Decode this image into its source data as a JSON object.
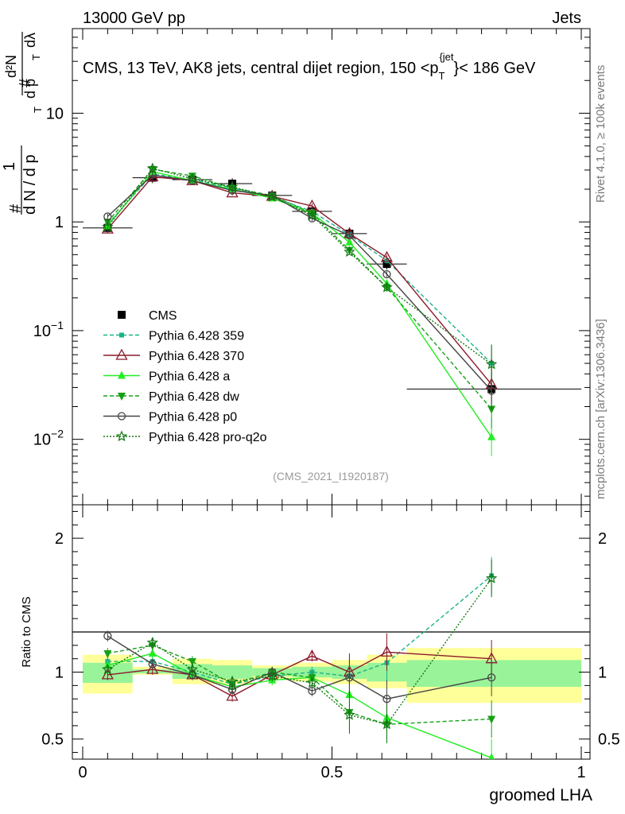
{
  "header": {
    "energy_label": "13000 GeV pp",
    "category_label": "Jets"
  },
  "side_labels": {
    "rivet": "Rivet 4.1.0, ≥ 100k events",
    "source": "mcplots.cern.ch [arXiv:1306.3436]"
  },
  "chart_data": [
    {
      "type": "line",
      "scale": "log",
      "title_parts": {
        "pre": "CMS, 13 TeV, AK8 jets, central dijet region, 150 <p",
        "sub": "T",
        "sup": "{jet",
        "post": "}< 186 GeV"
      },
      "ylabel_parts": {
        "hash": "#",
        "one": "1",
        "d": "d",
        "N": "N",
        "slash": " / ",
        "dp": "d p",
        "T": "T",
        "d2N": "d²N",
        "dpT": "d p",
        "dlam": "dλ"
      },
      "ylim": [
        0.0025,
        60
      ],
      "y_ticks": [
        {
          "value": 0.01,
          "base": "10",
          "exp": "−2"
        },
        {
          "value": 0.1,
          "base": "10",
          "exp": "−1"
        },
        {
          "value": 1,
          "base": "1",
          "exp": ""
        },
        {
          "value": 10,
          "base": "10",
          "exp": ""
        }
      ],
      "reference_label": "(CMS_2021_I1920187)",
      "x": [
        0.05,
        0.14,
        0.22,
        0.3,
        0.38,
        0.46,
        0.535,
        0.61,
        0.82
      ],
      "bin_edges": [
        0,
        0.1,
        0.18,
        0.26,
        0.34,
        0.42,
        0.5,
        0.57,
        0.65,
        1.0
      ],
      "series": [
        {
          "name": "CMS",
          "color": "#000000",
          "marker": "square",
          "dash": "",
          "values": [
            0.88,
            2.55,
            2.45,
            2.25,
            1.75,
            1.25,
            0.78,
            0.41,
            0.029
          ]
        },
        {
          "name": "Pythia 6.428 359",
          "color": "#1ab28a",
          "marker": "smallsquare",
          "dash": "5,3",
          "values": [
            0.95,
            2.75,
            2.45,
            2.05,
            1.7,
            1.25,
            0.76,
            0.44,
            0.05
          ]
        },
        {
          "name": "Pythia 6.428 370",
          "color": "#8b1a2b",
          "marker": "triangle-open",
          "dash": "",
          "values": [
            0.86,
            2.6,
            2.4,
            1.85,
            1.72,
            1.4,
            0.78,
            0.47,
            0.032
          ]
        },
        {
          "name": "Pythia 6.428 a",
          "color": "#22ee22",
          "marker": "triangle",
          "dash": "",
          "values": [
            0.92,
            2.9,
            2.4,
            2.0,
            1.65,
            1.2,
            0.65,
            0.27,
            0.0105
          ]
        },
        {
          "name": "Pythia 6.428 dw",
          "color": "#16a016",
          "marker": "triangle-down",
          "dash": "5,3",
          "values": [
            1.0,
            3.05,
            2.65,
            2.05,
            1.75,
            1.2,
            0.55,
            0.25,
            0.019
          ]
        },
        {
          "name": "Pythia 6.428 p0",
          "color": "#444444",
          "marker": "circle-open",
          "dash": "",
          "values": [
            1.12,
            2.7,
            2.4,
            1.95,
            1.75,
            1.08,
            0.75,
            0.33,
            0.028
          ]
        },
        {
          "name": "Pythia 6.428 pro-q2o",
          "color": "#117711",
          "marker": "star",
          "dash": "2,2",
          "values": [
            0.9,
            3.1,
            2.5,
            2.1,
            1.7,
            1.15,
            0.53,
            0.25,
            0.049
          ]
        }
      ]
    },
    {
      "type": "line",
      "ylabel": "Ratio to CMS",
      "xlabel": "groomed LHA",
      "ylim": [
        0.35,
        2.25
      ],
      "xlim": [
        -0.02,
        1.0
      ],
      "y_ticks": [
        {
          "value": 0.5,
          "label": "0.5"
        },
        {
          "value": 1,
          "label": "1"
        },
        {
          "value": 2,
          "label": "2"
        }
      ],
      "x_ticks": [
        {
          "value": 0,
          "label": "0"
        },
        {
          "value": 0.5,
          "label": "0.5"
        },
        {
          "value": 1,
          "label": "1"
        }
      ],
      "bands": {
        "bin_edges": [
          0,
          0.1,
          0.18,
          0.26,
          0.34,
          0.42,
          0.5,
          0.57,
          0.65,
          1.0
        ],
        "yellow": [
          [
            0.84,
            1.13
          ],
          [
            0.98,
            1.04
          ],
          [
            0.91,
            1.1
          ],
          [
            0.91,
            1.09
          ],
          [
            0.95,
            1.05
          ],
          [
            0.93,
            1.07
          ],
          [
            0.91,
            1.09
          ],
          [
            0.88,
            1.13
          ],
          [
            0.77,
            1.18
          ]
        ],
        "green": [
          [
            0.92,
            1.07
          ],
          [
            0.99,
            1.02
          ],
          [
            0.95,
            1.06
          ],
          [
            0.95,
            1.05
          ],
          [
            0.97,
            1.03
          ],
          [
            0.96,
            1.04
          ],
          [
            0.95,
            1.05
          ],
          [
            0.93,
            1.07
          ],
          [
            0.89,
            1.09
          ]
        ]
      },
      "series": [
        {
          "name": "Pythia 6.428 359",
          "values": [
            1.08,
            1.08,
            1.0,
            0.91,
            0.97,
            1.0,
            0.97,
            1.07,
            1.72
          ]
        },
        {
          "name": "Pythia 6.428 370",
          "values": [
            0.98,
            1.02,
            0.98,
            0.82,
            0.98,
            1.12,
            1.0,
            1.15,
            1.1
          ]
        },
        {
          "name": "Pythia 6.428 a",
          "values": [
            1.05,
            1.14,
            0.98,
            0.89,
            0.94,
            0.96,
            0.83,
            0.66,
            0.36
          ]
        },
        {
          "name": "Pythia 6.428 dw",
          "values": [
            1.14,
            1.2,
            1.08,
            0.91,
            1.0,
            0.96,
            0.7,
            0.61,
            0.65
          ]
        },
        {
          "name": "Pythia 6.428 p0",
          "values": [
            1.27,
            1.06,
            0.98,
            0.87,
            1.0,
            0.86,
            0.96,
            0.8,
            0.96
          ]
        },
        {
          "name": "Pythia 6.428 pro-q2o",
          "values": [
            1.02,
            1.22,
            1.02,
            0.93,
            0.97,
            0.92,
            0.68,
            0.61,
            1.7
          ]
        }
      ]
    }
  ]
}
